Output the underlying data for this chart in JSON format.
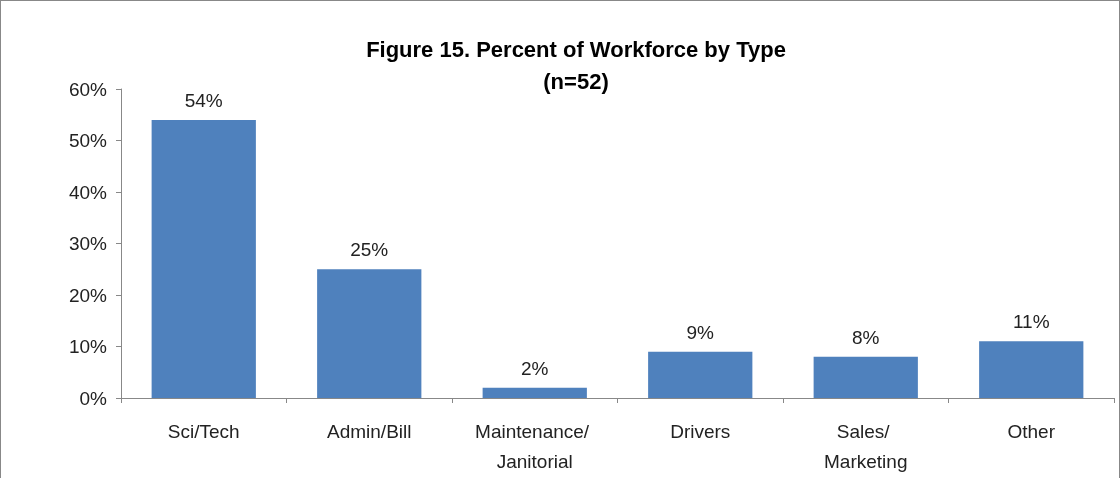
{
  "chart_data": {
    "type": "bar",
    "title": "Figure 15. Percent of Workforce by Type",
    "subtitle": "(n=52)",
    "categories": [
      "Sci/Tech",
      "Admin/Bill",
      "Maintenance/ Janitorial",
      "Drivers",
      "Sales/ Marketing",
      "Other"
    ],
    "values": [
      54,
      25,
      2,
      9,
      8,
      11
    ],
    "color": "#4f81bd",
    "value_labels": [
      "54%",
      "25%",
      "2%",
      "9%",
      "8%",
      "11%"
    ],
    "ylim": [
      0,
      60
    ],
    "yticks": [
      {
        "value": 0,
        "label": "0%"
      },
      {
        "value": 10,
        "label": "10%"
      },
      {
        "value": 20,
        "label": "20%"
      },
      {
        "value": 30,
        "label": "30%"
      },
      {
        "value": 40,
        "label": "40%"
      },
      {
        "value": 50,
        "label": "50%"
      },
      {
        "value": 60,
        "label": "60%"
      }
    ],
    "grid": false
  }
}
